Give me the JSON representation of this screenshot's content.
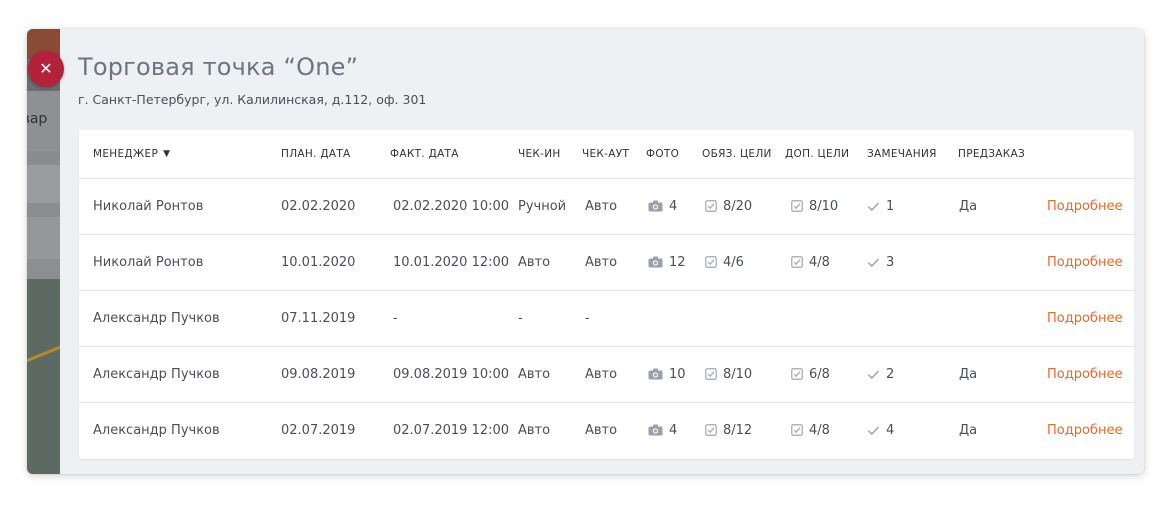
{
  "modal": {
    "close_symbol": "✕",
    "title": "Торговая точка “One”",
    "address": "г. Санкт-Петербург, ул. Калилинская, д.112, оф. 301"
  },
  "background": {
    "fragment_text": "овар"
  },
  "table": {
    "headers": {
      "manager": "Менеджер",
      "plan_date": "План. дата",
      "fact_date": "Факт. дата",
      "check_in": "Чек-ин",
      "check_out": "Чек-аут",
      "photo": "Фото",
      "mandatory_goals": "Обяз. цели",
      "extra_goals": "Доп. цели",
      "remarks": "Замечания",
      "preorder": "Предзаказ"
    },
    "sort_icon": "chevron-down-icon",
    "rows": [
      {
        "manager": "Николай Ронтов",
        "plan_date": "02.02.2020",
        "fact_date": "02.02.2020 10:00",
        "check_in": "Ручной",
        "check_out": "Авто",
        "photos": "4",
        "mandatory": "8/20",
        "extra": "8/10",
        "remarks": "1",
        "preorder": "Да",
        "details": "Подробнее"
      },
      {
        "manager": "Николай Ронтов",
        "plan_date": "10.01.2020",
        "fact_date": "10.01.2020 12:00",
        "check_in": "Авто",
        "check_out": "Авто",
        "photos": "12",
        "mandatory": "4/6",
        "extra": "4/8",
        "remarks": "3",
        "preorder": "",
        "details": "Подробнее"
      },
      {
        "manager": "Александр Пучков",
        "plan_date": "07.11.2019",
        "fact_date": "-",
        "check_in": "-",
        "check_out": "-",
        "photos": "",
        "mandatory": "",
        "extra": "",
        "remarks": "",
        "preorder": "",
        "details": "Подробнее"
      },
      {
        "manager": "Александр Пучков",
        "plan_date": "09.08.2019",
        "fact_date": "09.08.2019 10:00",
        "check_in": "Авто",
        "check_out": "Авто",
        "photos": "10",
        "mandatory": "8/10",
        "extra": "6/8",
        "remarks": "2",
        "preorder": "Да",
        "details": "Подробнее"
      },
      {
        "manager": "Александр Пучков",
        "plan_date": "02.07.2019",
        "fact_date": "02.07.2019 12:00",
        "check_in": "Авто",
        "check_out": "Авто",
        "photos": "4",
        "mandatory": "8/12",
        "extra": "4/8",
        "remarks": "4",
        "preorder": "Да",
        "details": "Подробнее"
      }
    ]
  },
  "colors": {
    "accent_link": "#e06c2f",
    "close_button": "#b3223a",
    "panel_bg": "#eef1f4"
  },
  "icons": {
    "photo": "camera-icon",
    "goals": "checkbox-icon",
    "remarks": "checkmark-icon"
  }
}
